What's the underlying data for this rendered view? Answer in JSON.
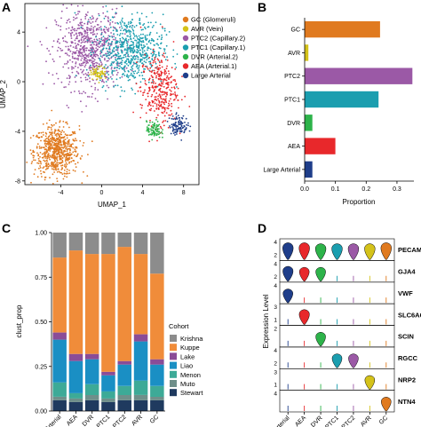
{
  "panels": {
    "A": "A",
    "B": "B",
    "C": "C",
    "D": "D"
  },
  "colors": {
    "GC": "#E07A1F",
    "AVR": "#D4C21A",
    "PTC2": "#9B59A6",
    "PTC1": "#1B9EAF",
    "DVR": "#2DB34A",
    "AEA": "#E8282B",
    "Large Arterial": "#1F3E8A"
  },
  "chart_data": [
    {
      "type": "scatter",
      "panel": "A",
      "xlabel": "UMAP_1",
      "ylabel": "UMAP_2",
      "xlim": [
        -7.5,
        9.5
      ],
      "ylim": [
        -8.3,
        6.3
      ],
      "xticks": [
        -4,
        0,
        4,
        8
      ],
      "yticks": [
        -8,
        -4,
        0,
        4
      ],
      "legend": [
        {
          "key": "GC",
          "label": "GC (Glomeruli)"
        },
        {
          "key": "AVR",
          "label": "AVR (Vein)"
        },
        {
          "key": "PTC2",
          "label": "PTC2 (Capillary.2)"
        },
        {
          "key": "PTC1",
          "label": "PTC1 (Capillary.1)"
        },
        {
          "key": "DVR",
          "label": "DVR (Arterial.2)"
        },
        {
          "key": "AEA",
          "label": "AEA (Arterial.1)"
        },
        {
          "key": "Large Arterial",
          "label": "Large Arterial"
        }
      ],
      "clusters": [
        {
          "key": "GC",
          "cx": -4.4,
          "cy": -5.6,
          "sx": 1.1,
          "sy": 1.0,
          "n": 650
        },
        {
          "key": "PTC2",
          "cx": -1.2,
          "cy": 2.6,
          "sx": 1.6,
          "sy": 1.6,
          "n": 700
        },
        {
          "key": "PTC1",
          "cx": 2.8,
          "cy": 2.6,
          "sx": 1.6,
          "sy": 1.4,
          "n": 620
        },
        {
          "key": "AEA",
          "cx": 5.6,
          "cy": -0.6,
          "sx": 0.9,
          "sy": 1.4,
          "n": 320
        },
        {
          "key": "DVR",
          "cx": 5.1,
          "cy": -3.9,
          "sx": 0.35,
          "sy": 0.35,
          "n": 90
        },
        {
          "key": "AVR",
          "cx": -0.3,
          "cy": 0.7,
          "sx": 0.4,
          "sy": 0.25,
          "n": 70
        },
        {
          "key": "Large Arterial",
          "cx": 7.5,
          "cy": -3.5,
          "sx": 0.45,
          "sy": 0.4,
          "n": 110
        }
      ]
    },
    {
      "type": "bar",
      "panel": "B",
      "orientation": "horizontal",
      "categories": [
        "GC",
        "AVR",
        "PTC2",
        "PTC1",
        "DVR",
        "AEA",
        "Large Arterial"
      ],
      "values": [
        0.245,
        0.012,
        0.35,
        0.24,
        0.025,
        0.1,
        0.025
      ],
      "xlabel": "Proportion",
      "xticks": [
        0.0,
        0.1,
        0.2,
        0.3
      ],
      "xlim": [
        0,
        0.355
      ]
    },
    {
      "type": "bar",
      "panel": "C",
      "stacked": true,
      "ylabel": "clust_prop",
      "yticks": [
        0.0,
        0.25,
        0.5,
        0.75,
        1.0
      ],
      "ylim": [
        0,
        1
      ],
      "categories": [
        "Large Arterial",
        "AEA",
        "DVR",
        "PTC1",
        "PTC2",
        "AVR",
        "GC"
      ],
      "legend_title": "Cohort",
      "series": [
        {
          "name": "Stewart",
          "color": "#1F3A5F",
          "values": [
            0.06,
            0.05,
            0.06,
            0.05,
            0.06,
            0.06,
            0.06
          ]
        },
        {
          "name": "Muto",
          "color": "#6F8F8A",
          "values": [
            0.02,
            0.02,
            0.03,
            0.02,
            0.03,
            0.03,
            0.02
          ]
        },
        {
          "name": "Menon",
          "color": "#3DAA97",
          "values": [
            0.08,
            0.03,
            0.06,
            0.04,
            0.05,
            0.08,
            0.06
          ]
        },
        {
          "name": "Liao",
          "color": "#1A8FC4",
          "values": [
            0.24,
            0.18,
            0.14,
            0.09,
            0.12,
            0.22,
            0.12
          ]
        },
        {
          "name": "Lake",
          "color": "#8A4C97",
          "values": [
            0.04,
            0.04,
            0.03,
            0.02,
            0.02,
            0.04,
            0.03
          ]
        },
        {
          "name": "Kuppe",
          "color": "#F08C3A",
          "values": [
            0.42,
            0.58,
            0.56,
            0.66,
            0.64,
            0.45,
            0.48
          ]
        },
        {
          "name": "Krishna",
          "color": "#8C8C8C",
          "values": [
            0.14,
            0.1,
            0.12,
            0.12,
            0.08,
            0.12,
            0.23
          ]
        }
      ]
    },
    {
      "type": "violin",
      "panel": "D",
      "ylabel": "Expression Level",
      "categories": [
        "Large Arterial",
        "AEA",
        "DVR",
        "PTC1",
        "PTC2",
        "AVR",
        "GC"
      ],
      "genes": [
        {
          "name": "PECAM1",
          "ticks": [
            "4",
            "2"
          ],
          "peaks": [
            0.85,
            0.85,
            0.8,
            0.8,
            0.8,
            0.8,
            0.85
          ]
        },
        {
          "name": "GJA4",
          "ticks": [
            "4",
            "2"
          ],
          "peaks": [
            0.75,
            0.7,
            0.7,
            0.05,
            0.05,
            0.05,
            0.05
          ]
        },
        {
          "name": "VWF",
          "ticks": [
            "4"
          ],
          "peaks": [
            0.7,
            0.05,
            0.05,
            0.05,
            0.05,
            0.05,
            0.05
          ]
        },
        {
          "name": "SLC6A6",
          "ticks": [
            "3",
            "1"
          ],
          "peaks": [
            0.05,
            0.75,
            0.05,
            0.05,
            0.05,
            0.05,
            0.05
          ]
        },
        {
          "name": "SCIN",
          "ticks": [
            "2"
          ],
          "peaks": [
            0.05,
            0.05,
            0.7,
            0.05,
            0.05,
            0.05,
            0.05
          ]
        },
        {
          "name": "RGCC",
          "ticks": [
            "4",
            "2"
          ],
          "peaks": [
            0.05,
            0.05,
            0.05,
            0.7,
            0.7,
            0.05,
            0.05
          ]
        },
        {
          "name": "NRP2",
          "ticks": [
            "3",
            "1"
          ],
          "peaks": [
            0.05,
            0.05,
            0.05,
            0.05,
            0.05,
            0.7,
            0.05
          ]
        },
        {
          "name": "NTN4",
          "ticks": [
            "4"
          ],
          "peaks": [
            0.05,
            0.05,
            0.05,
            0.05,
            0.05,
            0.05,
            0.7
          ]
        }
      ]
    }
  ]
}
